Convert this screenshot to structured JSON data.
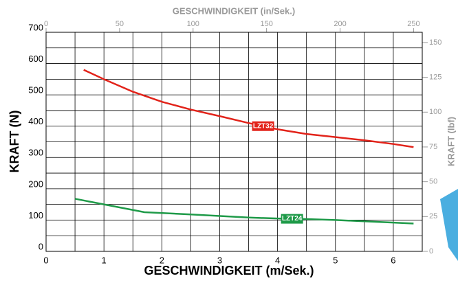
{
  "chart_data": {
    "type": "line",
    "x_label": "GESCHWINDIGKEIT (m/Sek.)",
    "y_label": "KRAFT (N)",
    "x2_label": "GESCHWINDIGKEIT (in/Sek.)",
    "y2_label": "KRAFT (lbf)",
    "xlim": [
      0,
      6.5
    ],
    "xticks": [
      0,
      1,
      2,
      3,
      4,
      5,
      6
    ],
    "ylim": [
      0,
      700
    ],
    "yticks": [
      0,
      100,
      200,
      300,
      400,
      500,
      600,
      700
    ],
    "x2lim": [
      0,
      255.9
    ],
    "x2ticks": [
      0,
      50,
      100,
      150,
      200,
      250
    ],
    "y2lim": [
      0,
      157.37
    ],
    "y2ticks": [
      0,
      25,
      50,
      75,
      100,
      125,
      150
    ],
    "grid": true,
    "series": [
      {
        "name": "LZT32",
        "color": "#e2231a",
        "x": [
          0.65,
          1,
          1.5,
          2,
          2.5,
          3,
          3.5,
          4,
          4.5,
          5,
          5.5,
          6,
          6.35
        ],
        "values": [
          580,
          550,
          510,
          478,
          453,
          432,
          410,
          390,
          375,
          365,
          355,
          343,
          333
        ]
      },
      {
        "name": "LZT24",
        "color": "#1e9a48",
        "x": [
          0.5,
          1,
          1.7,
          2.5,
          3,
          3.5,
          4,
          4.5,
          5,
          5.5,
          6,
          6.35
        ],
        "values": [
          168,
          150,
          125,
          118,
          113,
          108,
          105,
          103,
          100,
          96,
          92,
          89
        ]
      }
    ]
  }
}
